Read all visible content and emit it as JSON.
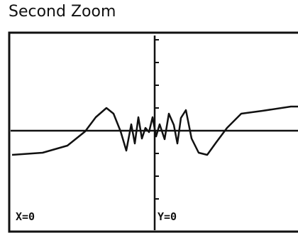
{
  "header": {
    "title": "Second Zoom"
  },
  "screen": {
    "x_label": "X=0",
    "y_label": "Y=0"
  }
}
